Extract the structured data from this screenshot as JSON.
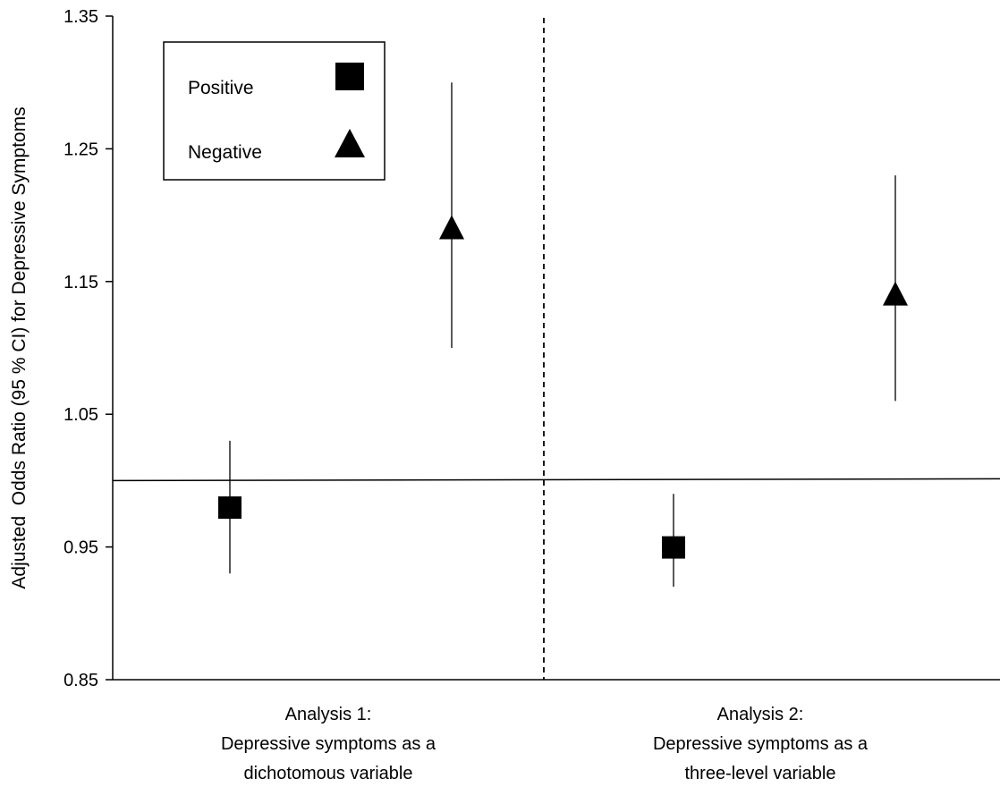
{
  "chart_data": {
    "type": "scatter",
    "title": "",
    "xlabel": "",
    "ylabel": "Adjusted  Odds Ratio (95 % CI) for Depressive Symptoms",
    "ylim": [
      0.85,
      1.35
    ],
    "yticks": [
      "0.85",
      "0.95",
      "1.05",
      "1.15",
      "1.25",
      "1.35"
    ],
    "reference_line": 1.0,
    "grid": false,
    "legend": {
      "placement": "top-left",
      "entries": [
        "Positive",
        "Negative"
      ]
    },
    "categories": [
      {
        "lines": [
          "Analysis 1:",
          "Depressive symptoms as a",
          "dichotomous variable"
        ]
      },
      {
        "lines": [
          "Analysis 2:",
          "Depressive symptoms as a",
          "three-level variable"
        ]
      }
    ],
    "series": [
      {
        "name": "Positive",
        "marker": "square",
        "points": [
          {
            "category": 0,
            "value": 0.98,
            "ci_low": 0.93,
            "ci_high": 1.03
          },
          {
            "category": 1,
            "value": 0.95,
            "ci_low": 0.92,
            "ci_high": 0.99
          }
        ]
      },
      {
        "name": "Negative",
        "marker": "triangle",
        "points": [
          {
            "category": 0,
            "value": 1.19,
            "ci_low": 1.1,
            "ci_high": 1.3
          },
          {
            "category": 1,
            "value": 1.14,
            "ci_low": 1.06,
            "ci_high": 1.23
          }
        ]
      }
    ],
    "colors": {
      "markers": "#000000"
    }
  }
}
